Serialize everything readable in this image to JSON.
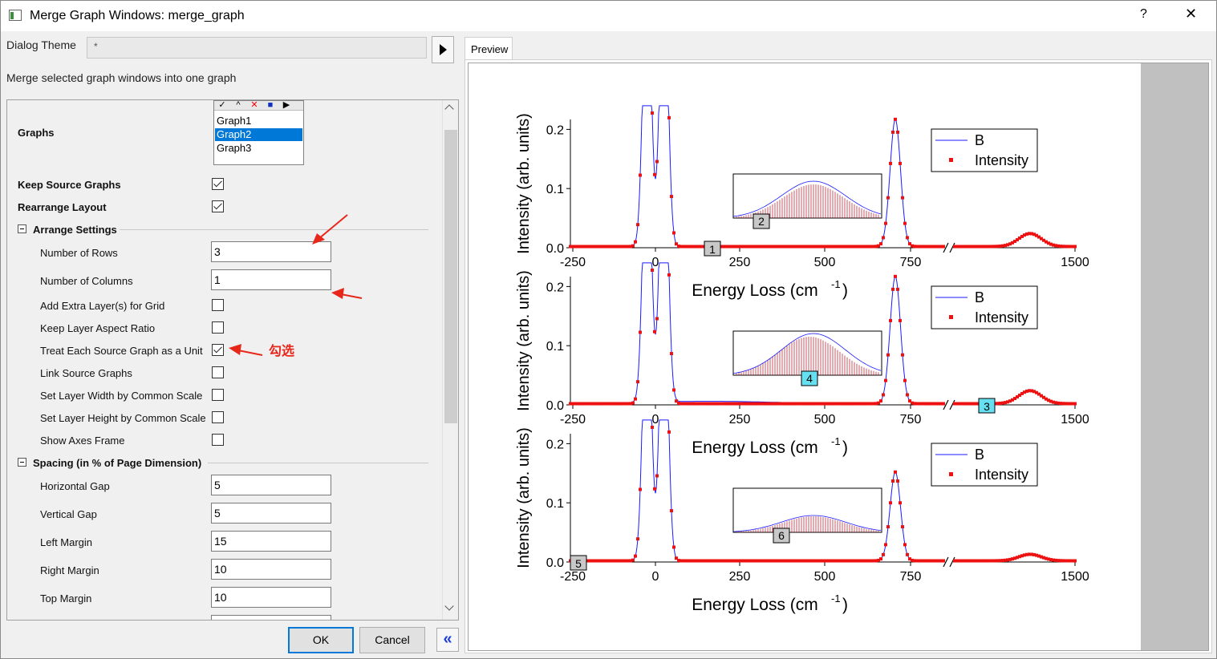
{
  "window": {
    "title": "Merge Graph Windows: merge_graph",
    "help": "?",
    "close": "✕"
  },
  "theme": {
    "label": "Dialog Theme",
    "value": "*"
  },
  "description": "Merge selected graph windows into one graph",
  "graphs": {
    "label": "Graphs",
    "toolbar": [
      "✓",
      "^",
      "✕",
      "■",
      "▶"
    ],
    "items": [
      "Graph1",
      "Graph2",
      "Graph3"
    ],
    "selected": "Graph2"
  },
  "options": {
    "keep_source_graphs": {
      "label": "Keep Source Graphs",
      "checked": true
    },
    "rearrange_layout": {
      "label": "Rearrange Layout",
      "checked": true
    }
  },
  "arrange_settings": {
    "label": "Arrange Settings",
    "number_of_rows": {
      "label": "Number of Rows",
      "value": "3"
    },
    "number_of_columns": {
      "label": "Number of Columns",
      "value": "1"
    },
    "add_extra_layers": {
      "label": "Add Extra Layer(s) for Grid",
      "checked": false
    },
    "keep_aspect": {
      "label": "Keep Layer Aspect Ratio",
      "checked": false
    },
    "treat_as_unit": {
      "label": "Treat Each Source Graph as a Unit",
      "checked": true
    },
    "link_source": {
      "label": "Link Source Graphs",
      "checked": false
    },
    "common_width": {
      "label": "Set Layer Width by Common Scale",
      "checked": false
    },
    "common_height": {
      "label": "Set Layer Height by Common Scale",
      "checked": false
    },
    "show_axes_frame": {
      "label": "Show Axes Frame",
      "checked": false
    }
  },
  "spacing": {
    "label": "Spacing (in % of Page Dimension)",
    "horizontal_gap": {
      "label": "Horizontal Gap",
      "value": "5"
    },
    "vertical_gap": {
      "label": "Vertical Gap",
      "value": "5"
    },
    "left_margin": {
      "label": "Left Margin",
      "value": "15"
    },
    "right_margin": {
      "label": "Right Margin",
      "value": "10"
    },
    "top_margin": {
      "label": "Top Margin",
      "value": "10"
    }
  },
  "annotation": "勾选",
  "buttons": {
    "ok": "OK",
    "cancel": "Cancel",
    "collapse": "«"
  },
  "preview": {
    "tab": "Preview",
    "colors": {
      "line": "#1a1aff",
      "scatter": "#ee1111",
      "annotation": "#e8271b"
    },
    "chart_data": [
      {
        "type": "line",
        "panel": "1",
        "ylabel": "Intensity (arb. units)",
        "xlabel": "Energy Loss (cm-1)",
        "xticks": [
          "-250",
          "0",
          "250",
          "500",
          "750",
          "1500"
        ],
        "yticks": [
          "0.0",
          "0.1",
          "0.2"
        ],
        "inset_label": "2",
        "legend": [
          "B",
          "Intensity"
        ]
      },
      {
        "type": "line",
        "panel": "3",
        "ylabel": "Intensity (arb. units)",
        "xlabel": "Energy Loss (cm-1)",
        "xticks": [
          "-250",
          "0",
          "250",
          "500",
          "750",
          "1500"
        ],
        "yticks": [
          "0.0",
          "0.1",
          "0.2"
        ],
        "inset_label": "4",
        "legend": [
          "B",
          "Intensity"
        ]
      },
      {
        "type": "line",
        "panel": "5",
        "ylabel": "Intensity (arb. units)",
        "xlabel": "Energy Loss (cm-1)",
        "xticks": [
          "-250",
          "0",
          "250",
          "500",
          "750",
          "1500"
        ],
        "yticks": [
          "0.0",
          "0.1",
          "0.2"
        ],
        "inset_label": "6",
        "legend": [
          "B",
          "Intensity"
        ]
      }
    ]
  }
}
